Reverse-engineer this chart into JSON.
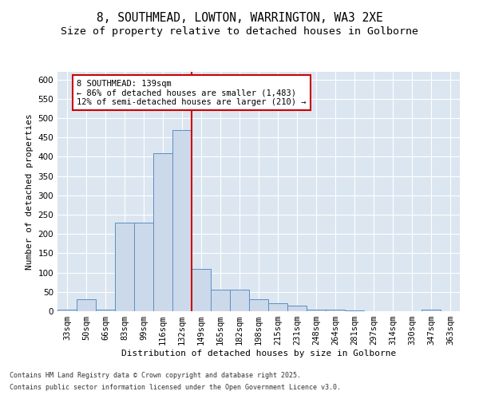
{
  "title_line1": "8, SOUTHMEAD, LOWTON, WARRINGTON, WA3 2XE",
  "title_line2": "Size of property relative to detached houses in Golborne",
  "xlabel": "Distribution of detached houses by size in Golborne",
  "ylabel": "Number of detached properties",
  "categories": [
    "33sqm",
    "50sqm",
    "66sqm",
    "83sqm",
    "99sqm",
    "116sqm",
    "132sqm",
    "149sqm",
    "165sqm",
    "182sqm",
    "198sqm",
    "215sqm",
    "231sqm",
    "248sqm",
    "264sqm",
    "281sqm",
    "297sqm",
    "314sqm",
    "330sqm",
    "347sqm",
    "363sqm"
  ],
  "values": [
    5,
    30,
    5,
    230,
    230,
    410,
    470,
    110,
    55,
    55,
    30,
    20,
    15,
    5,
    5,
    2,
    0,
    0,
    0,
    5,
    0
  ],
  "bar_color": "#ccd9ea",
  "bar_edge_color": "#5b8ec4",
  "vline_color": "#cc0000",
  "annotation_box_text": "8 SOUTHMEAD: 139sqm\n← 86% of detached houses are smaller (1,483)\n12% of semi-detached houses are larger (210) →",
  "annotation_box_color": "#cc0000",
  "annotation_box_bg": "#ffffff",
  "ylim": [
    0,
    620
  ],
  "yticks": [
    0,
    50,
    100,
    150,
    200,
    250,
    300,
    350,
    400,
    450,
    500,
    550,
    600
  ],
  "background_color": "#dce6f1",
  "footer_line1": "Contains HM Land Registry data © Crown copyright and database right 2025.",
  "footer_line2": "Contains public sector information licensed under the Open Government Licence v3.0.",
  "title_fontsize": 10.5,
  "subtitle_fontsize": 9.5,
  "axis_label_fontsize": 8,
  "tick_fontsize": 7.5,
  "footer_fontsize": 6,
  "vline_xindex": 7,
  "annot_xstart": 0.5,
  "annot_ystart": 600
}
